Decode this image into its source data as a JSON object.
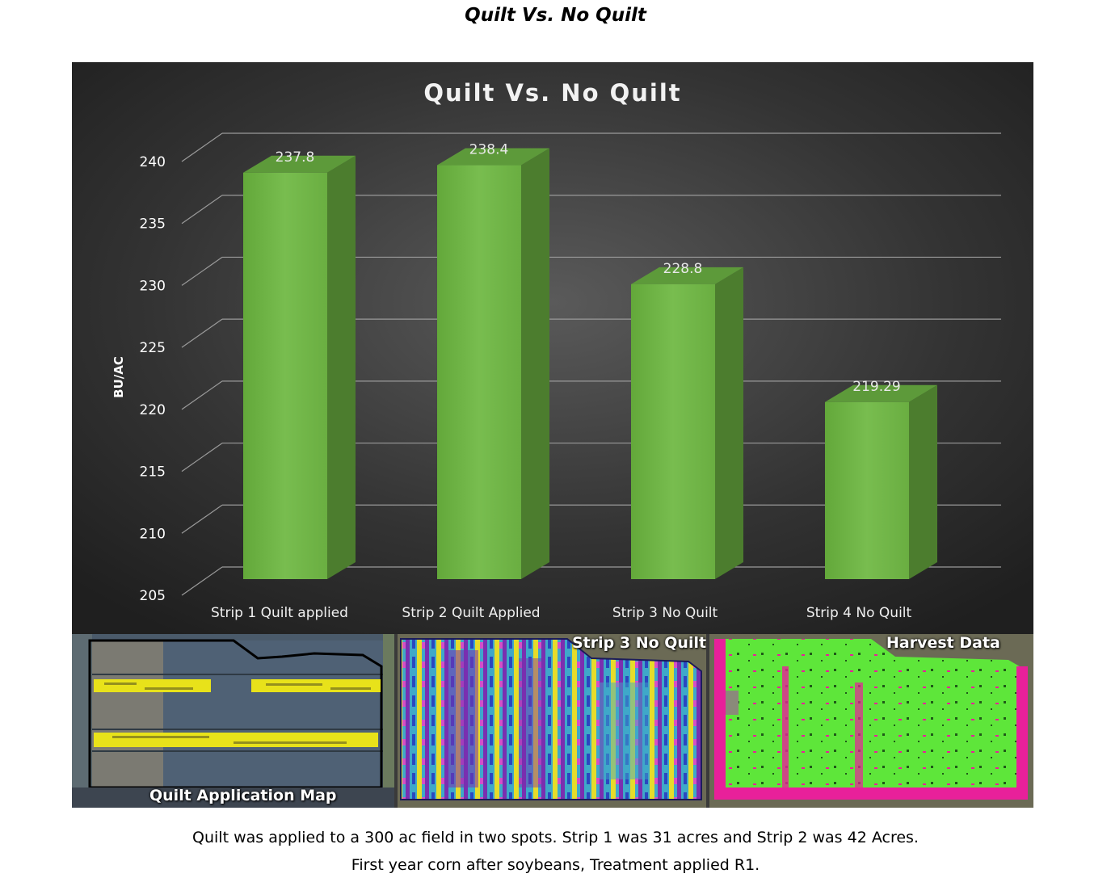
{
  "page": {
    "title": "Quilt Vs. No Quilt",
    "caption_line1": "Quilt was applied to a 300 ac field in two spots.  Strip 1 was 31 acres and Strip 2 was 42 Acres.",
    "caption_line2": "First year corn after soybeans, Treatment applied R1."
  },
  "chart_data": {
    "type": "bar",
    "title": "Quilt Vs. No Quilt",
    "ylabel": "BU/AC",
    "xlabel": "",
    "categories": [
      "Strip 1 Quilt applied",
      "Strip 2 Quilt Applied",
      "Strip 3  No Quilt",
      "Strip 4 No Quilt"
    ],
    "values": [
      237.8,
      238.4,
      228.8,
      219.29
    ],
    "value_labels": [
      "237.8",
      "238.4",
      "228.8",
      "219.29"
    ],
    "ylim": [
      205,
      240
    ],
    "yticks": [
      205,
      210,
      215,
      220,
      225,
      230,
      235,
      240
    ],
    "grid": true,
    "style": "3d-column",
    "colors": {
      "bar_front": "#6db343",
      "bar_side": "#4c7d2e",
      "bar_top": "#5d9a3a",
      "background": "#2c2c2c"
    }
  },
  "maps": [
    {
      "name": "Quilt Application Map",
      "label": "Quilt Application Map"
    },
    {
      "name": "Strip 3 No Quilt",
      "label": "Strip 3 No Quilt"
    },
    {
      "name": "Harvest Data",
      "label": "Harvest Data"
    }
  ]
}
